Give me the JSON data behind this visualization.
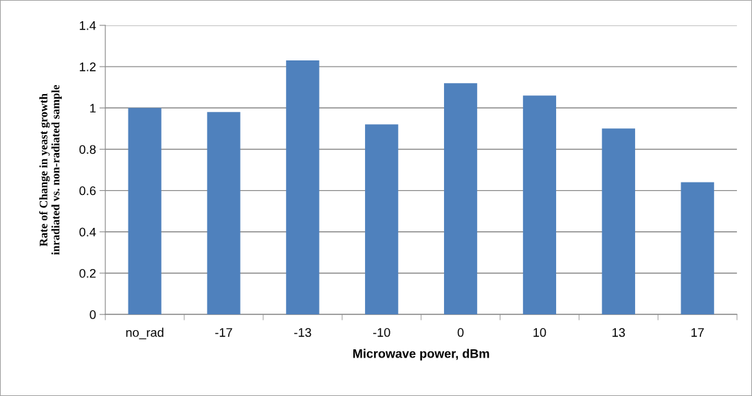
{
  "chart_data": {
    "type": "bar",
    "xlabel": "Microwave power, dBm",
    "ylabel": "Rate of Change in yeast growth\ninradiated vs. non-radiated sample",
    "categories": [
      "no_rad",
      "-17",
      "-13",
      "-10",
      "0",
      "10",
      "13",
      "17"
    ],
    "values": [
      1.0,
      0.98,
      1.23,
      0.92,
      1.12,
      1.06,
      0.9,
      0.64
    ],
    "color": "#4f81bd",
    "ylim": [
      0,
      1.4
    ],
    "yticks": [
      0,
      0.2,
      0.4,
      0.6,
      0.8,
      1,
      1.2,
      1.4
    ],
    "grid": "y",
    "legend": false
  }
}
